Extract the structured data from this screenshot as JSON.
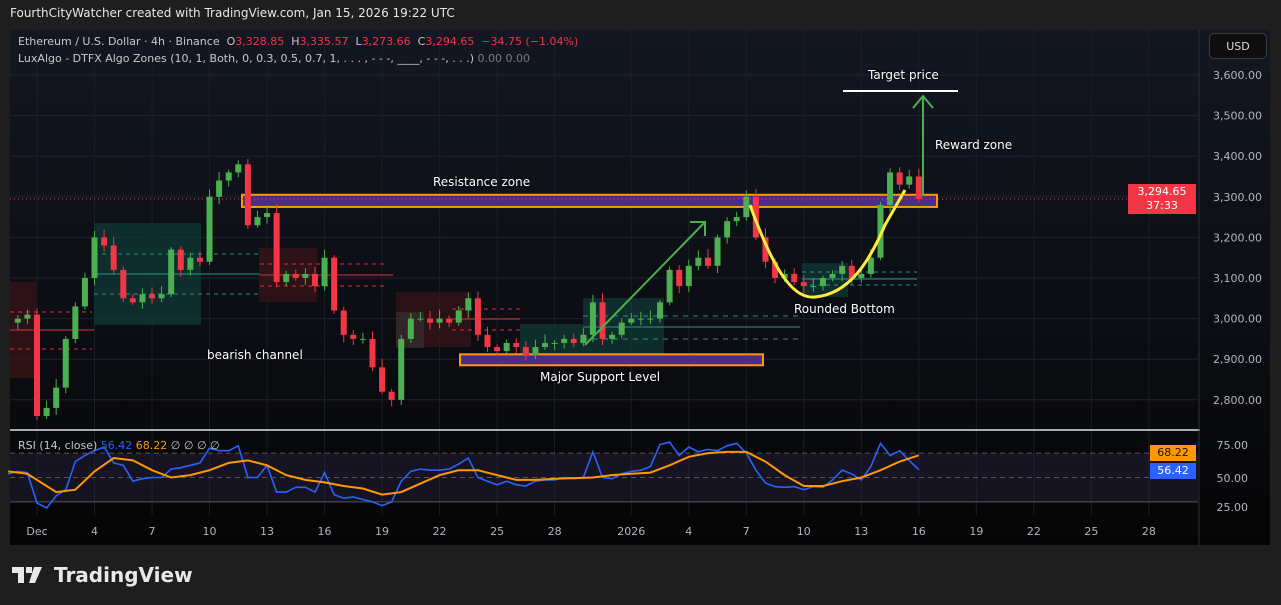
{
  "header": {
    "attribution": "FourthCityWatcher created with TradingView.com, Jan 15, 2026 19:22 UTC"
  },
  "legend": {
    "symbol": "Ethereum / U.S. Dollar · 4h · Binance",
    "o_label": "O",
    "o": "3,328.85",
    "h_label": "H",
    "h": "3,335.57",
    "l_label": "L",
    "l": "3,273.66",
    "c_label": "C",
    "c": "3,294.65",
    "change": "−34.75 (−1.04%)",
    "indicator": "LuxAlgo - DTFX Algo Zones (10, 1, Both, 0, 0.3, 0.5, 0.7, 1, . . . , - - -, ____, - - -, . . .)",
    "indicator_values": "0.00  0.00",
    "rsi_label": "RSI (14, close)",
    "rsi_value": "56.42",
    "rsi_ma_value": "68.22",
    "rsi_extra": "∅  ∅  ∅  ∅"
  },
  "currency_button": "USD",
  "price_label": {
    "price": "3,294.65",
    "countdown": "37:33"
  },
  "rsi_tags": {
    "ma": "68.22",
    "rsi": "56.42"
  },
  "annotations": {
    "resistance": "Resistance zone",
    "bearish": "bearish channel",
    "support": "Major Support  Level",
    "rounded": "Rounded Bottom",
    "reward": "Reward zone",
    "target": "Target price"
  },
  "logo": "TradingView",
  "colors": {
    "up": "#4caf50",
    "down": "#f23645",
    "rsi": "#2962ff",
    "rsi_ma": "#ff9800",
    "zone_fill": "#4a2c8a",
    "zone_border": "#ff9800",
    "rounded_curve": "#ffeb3b",
    "arrow": "#4caf50"
  },
  "chart_data": [
    {
      "type": "candlestick",
      "title": "Ethereum / U.S. Dollar · 4h · Binance",
      "x_unit": "days since Dec 1 (approx, 12h sampling)",
      "x_start_day": -1.5,
      "x_step_day": 0.5,
      "close": [
        2990,
        3000,
        3010,
        2760,
        2780,
        2830,
        2950,
        3030,
        3100,
        3200,
        3180,
        3120,
        3050,
        3040,
        3060,
        3050,
        3060,
        3170,
        3120,
        3150,
        3140,
        3300,
        3340,
        3360,
        3380,
        3230,
        3250,
        3260,
        3090,
        3110,
        3100,
        3110,
        3080,
        3150,
        3020,
        2960,
        2950,
        2950,
        2880,
        2820,
        2800,
        2950,
        3000,
        3000,
        2990,
        3000,
        2990,
        3020,
        3050,
        2960,
        2930,
        2920,
        2940,
        2930,
        2910,
        2930,
        2940,
        2940,
        2950,
        2940,
        2960,
        3040,
        2950,
        2960,
        2990,
        3000,
        3000,
        3000,
        3040,
        3120,
        3080,
        3130,
        3150,
        3130,
        3200,
        3240,
        3250,
        3300,
        3200,
        3140,
        3100,
        3110,
        3090,
        3080,
        3080,
        3100,
        3110,
        3130,
        3100,
        3110,
        3150,
        3280,
        3360,
        3330,
        3350,
        3294.65
      ],
      "ylim": [
        2740,
        3660
      ],
      "y_ticks": [
        "3,600.00",
        "3,500.00",
        "3,400.00",
        "3,300.00",
        "3,200.00",
        "3,100.00",
        "3,000.00",
        "2,900.00",
        "2,800.00"
      ],
      "y_tick_values": [
        3600,
        3500,
        3400,
        3300,
        3200,
        3100,
        3000,
        2900,
        2800
      ],
      "x_ticks": [
        {
          "label": "Dec",
          "day": 0
        },
        {
          "label": "4",
          "day": 3
        },
        {
          "label": "7",
          "day": 6
        },
        {
          "label": "10",
          "day": 9
        },
        {
          "label": "13",
          "day": 12
        },
        {
          "label": "16",
          "day": 15
        },
        {
          "label": "19",
          "day": 18
        },
        {
          "label": "22",
          "day": 21
        },
        {
          "label": "25",
          "day": 24
        },
        {
          "label": "28",
          "day": 27
        },
        {
          "label": "2026",
          "day": 31
        },
        {
          "label": "4",
          "day": 34
        },
        {
          "label": "7",
          "day": 37
        },
        {
          "label": "10",
          "day": 40
        },
        {
          "label": "13",
          "day": 43
        },
        {
          "label": "16",
          "day": 46
        },
        {
          "label": "19",
          "day": 49
        },
        {
          "label": "22",
          "day": 52
        },
        {
          "label": "25",
          "day": 55
        },
        {
          "label": "28",
          "day": 58
        }
      ],
      "resistance_zone": [
        3275,
        3305
      ],
      "support_zone": [
        2885,
        2912
      ],
      "current_price": 3294.65,
      "grid": true
    },
    {
      "type": "line",
      "title": "RSI (14, close)",
      "x_start_day": -1.5,
      "x_step_day": 0.5,
      "series": [
        {
          "name": "RSI",
          "values": [
            53,
            55,
            54,
            29,
            25,
            35,
            40,
            63,
            68,
            72,
            75,
            62,
            60,
            47,
            49,
            50,
            50,
            57,
            58,
            60,
            62,
            74,
            72,
            72,
            76,
            50,
            50,
            60,
            38,
            38,
            42,
            42,
            38,
            54,
            36,
            33,
            34,
            32,
            30,
            27,
            30,
            47,
            55,
            57,
            56,
            56,
            57,
            61,
            66,
            50,
            47,
            44,
            47,
            44,
            43,
            47,
            48,
            48,
            50,
            49,
            50,
            71,
            50,
            49,
            53,
            55,
            56,
            59,
            77,
            79,
            68,
            75,
            71,
            73,
            72,
            76,
            78,
            70,
            56,
            45.5,
            42.5,
            42,
            42.5,
            40,
            42.5,
            42,
            48,
            56,
            53,
            48,
            59,
            78,
            68,
            72,
            64,
            56.42
          ]
        },
        {
          "name": "RSI MA",
          "points": [
            [
              -1.5,
              55
            ],
            [
              -0.5,
              53
            ],
            [
              1,
              38
            ],
            [
              2,
              40
            ],
            [
              3,
              55
            ],
            [
              4,
              66
            ],
            [
              5,
              64
            ],
            [
              6,
              56
            ],
            [
              7,
              50
            ],
            [
              8,
              52
            ],
            [
              9,
              56
            ],
            [
              10,
              62
            ],
            [
              11,
              64
            ],
            [
              12,
              60
            ],
            [
              13,
              52
            ],
            [
              14,
              48
            ],
            [
              15,
              46
            ],
            [
              16,
              43
            ],
            [
              17,
              41
            ],
            [
              18,
              36
            ],
            [
              19,
              38
            ],
            [
              20,
              45
            ],
            [
              21,
              52
            ],
            [
              22,
              56
            ],
            [
              23,
              56
            ],
            [
              24,
              52
            ],
            [
              25,
              48
            ],
            [
              26,
              48
            ],
            [
              27,
              49
            ],
            [
              28,
              49.5
            ],
            [
              29,
              50
            ],
            [
              30,
              52
            ],
            [
              31,
              53
            ],
            [
              32,
              54
            ],
            [
              33,
              60
            ],
            [
              34,
              67
            ],
            [
              35,
              70
            ],
            [
              36,
              71
            ],
            [
              37,
              71
            ],
            [
              38,
              63
            ],
            [
              39,
              52
            ],
            [
              40,
              43
            ],
            [
              41,
              43
            ],
            [
              42,
              47
            ],
            [
              43,
              50
            ],
            [
              44,
              56
            ],
            [
              45,
              63
            ],
            [
              46,
              68.22
            ]
          ]
        }
      ],
      "ylim": [
        20,
        80
      ],
      "y_ticks": [
        "75.00",
        "50.00",
        "25.00"
      ],
      "y_tick_values": [
        75,
        50,
        25
      ],
      "bands": [
        30,
        50,
        70
      ]
    }
  ]
}
